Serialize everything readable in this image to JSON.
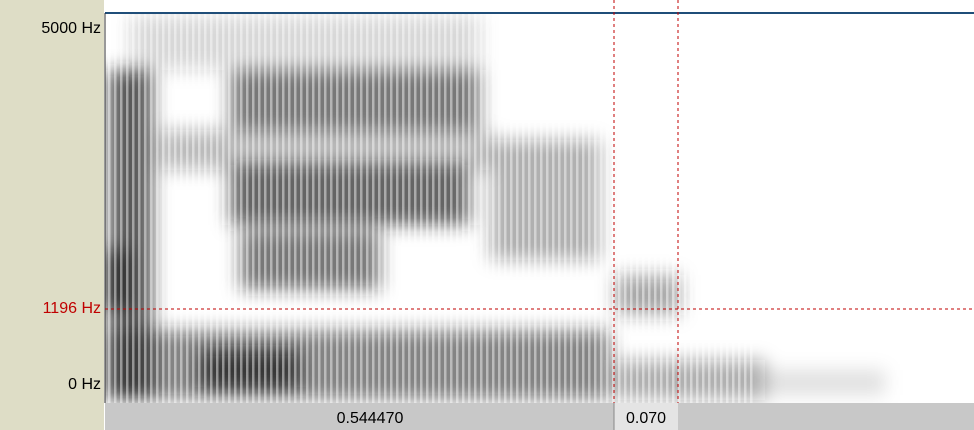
{
  "frequency_axis": {
    "top": "5000 Hz",
    "cursor": "1196 Hz",
    "bottom": "0 Hz"
  },
  "time_bar": {
    "left": "0.544470",
    "selection": "0.070"
  }
}
